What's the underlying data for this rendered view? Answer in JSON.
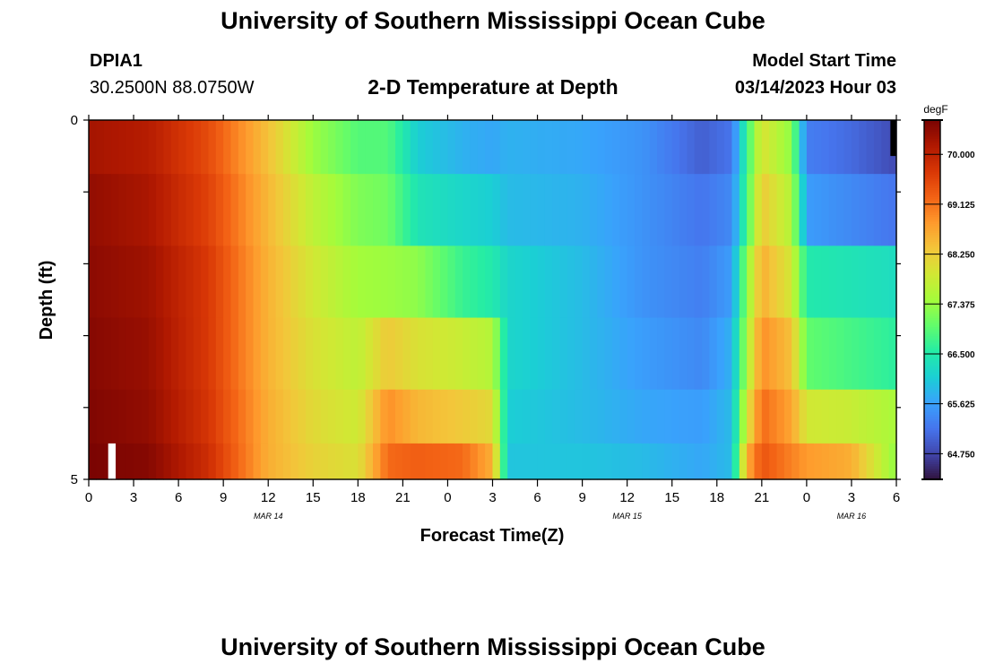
{
  "header": {
    "title": "University of Southern Mississippi Ocean Cube",
    "station_id": "DPIA1",
    "station_coords": "30.2500N  88.0750W",
    "subtitle": "2-D Temperature at Depth",
    "model_start_label": "Model Start Time",
    "model_start_value": "03/14/2023 Hour 03"
  },
  "footer": {
    "title": "University of Southern Mississippi Ocean Cube"
  },
  "chart_data": {
    "type": "heatmap",
    "title": "2-D Temperature at Depth",
    "xlabel": "Forecast Time(Z)",
    "ylabel": "Depth (ft)",
    "x_tick_labels": [
      "0",
      "3",
      "6",
      "9",
      "12",
      "15",
      "18",
      "21",
      "0",
      "3",
      "6",
      "9",
      "12",
      "15",
      "18",
      "21",
      "0",
      "3",
      "6"
    ],
    "x_hours_range": [
      0,
      54
    ],
    "date_labels": [
      {
        "label": "MAR 14",
        "hour": 12
      },
      {
        "label": "MAR 15",
        "hour": 36
      },
      {
        "label": "MAR 16",
        "hour": 51
      }
    ],
    "y_tick_labels": [
      "0",
      "5"
    ],
    "ylim": [
      0,
      5
    ],
    "depth_rows": [
      0.25,
      1.25,
      2.25,
      3.25,
      4.25,
      4.75
    ],
    "colorbar": {
      "unit": "degF",
      "tick_labels": [
        "70.000",
        "69.125",
        "68.250",
        "67.375",
        "66.500",
        "65.625",
        "64.750"
      ],
      "tick_values": [
        70.0,
        69.125,
        68.25,
        67.375,
        66.5,
        65.625,
        64.75
      ],
      "range": [
        64.3,
        70.6
      ],
      "colors": [
        "#30123b",
        "#4145ab",
        "#4675ed",
        "#39a2fc",
        "#1bcfd4",
        "#24eca6",
        "#61fc6c",
        "#a4fc3b",
        "#d1e834",
        "#f3c63a",
        "#fe9b2d",
        "#f36315",
        "#d93806",
        "#b11901",
        "#7a0402"
      ]
    },
    "temperature_keyframes": [
      {
        "hour": 0,
        "values": [
          70.25,
          70.4,
          70.45,
          70.5,
          70.55,
          70.6
        ]
      },
      {
        "hour": 4,
        "values": [
          70.1,
          70.2,
          70.3,
          70.35,
          70.4,
          70.5
        ]
      },
      {
        "hour": 8,
        "values": [
          69.5,
          69.6,
          69.7,
          69.7,
          69.75,
          69.85
        ]
      },
      {
        "hour": 12,
        "values": [
          68.4,
          68.5,
          68.55,
          68.55,
          68.6,
          68.6
        ]
      },
      {
        "hour": 15,
        "values": [
          67.4,
          67.7,
          67.9,
          68.0,
          68.1,
          68.2
        ]
      },
      {
        "hour": 18,
        "values": [
          66.9,
          67.2,
          67.45,
          67.7,
          67.85,
          68.0
        ]
      },
      {
        "hour": 20,
        "values": [
          66.9,
          67.1,
          67.4,
          68.3,
          68.9,
          69.2
        ]
      },
      {
        "hour": 22,
        "values": [
          66.1,
          66.4,
          67.3,
          68.0,
          68.5,
          69.3
        ]
      },
      {
        "hour": 25,
        "values": [
          65.8,
          66.2,
          66.7,
          67.8,
          68.3,
          69.2
        ]
      },
      {
        "hour": 27,
        "values": [
          65.7,
          66.1,
          66.5,
          67.6,
          68.1,
          68.6
        ]
      },
      {
        "hour": 28,
        "values": [
          65.8,
          65.9,
          66.2,
          66.2,
          66.1,
          66.0
        ]
      },
      {
        "hour": 33,
        "values": [
          65.7,
          65.8,
          65.9,
          65.9,
          65.9,
          66.0
        ]
      },
      {
        "hour": 37,
        "values": [
          65.5,
          65.5,
          65.5,
          65.6,
          65.7,
          65.9
        ]
      },
      {
        "hour": 41,
        "values": [
          65.0,
          65.2,
          65.3,
          65.4,
          65.6,
          65.7
        ]
      },
      {
        "hour": 43,
        "values": [
          65.2,
          65.4,
          65.6,
          65.8,
          65.9,
          65.9
        ]
      },
      {
        "hour": 44,
        "values": [
          66.7,
          66.8,
          67.3,
          67.5,
          67.9,
          68.6
        ]
      },
      {
        "hour": 45,
        "values": [
          68.0,
          68.3,
          68.6,
          68.9,
          69.2,
          69.4
        ]
      },
      {
        "hour": 47,
        "values": [
          67.3,
          67.6,
          67.9,
          68.4,
          68.7,
          69.0
        ]
      },
      {
        "hour": 48,
        "values": [
          65.3,
          65.6,
          66.5,
          67.0,
          67.9,
          68.8
        ]
      },
      {
        "hour": 51,
        "values": [
          65.1,
          65.4,
          66.4,
          66.8,
          67.8,
          68.6
        ]
      },
      {
        "hour": 54,
        "values": [
          64.8,
          65.2,
          66.3,
          66.6,
          67.5,
          67.3
        ]
      }
    ]
  }
}
